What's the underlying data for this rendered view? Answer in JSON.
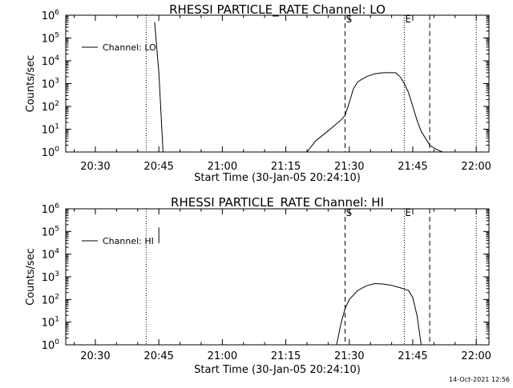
{
  "footer": {
    "timestamp": "14-Oct-2021 12:56"
  },
  "chart_data": [
    {
      "type": "line",
      "title": "RHESSI PARTICLE_RATE Channel: LO",
      "xlabel": "Start Time (30-Jan-05 20:24:10)",
      "ylabel": "Counts/sec",
      "yscale": "log",
      "ylim": [
        1,
        1000000
      ],
      "x_unit": "time of day (hh:mm)",
      "x_ticks": [
        "20:30",
        "20:45",
        "21:00",
        "21:15",
        "21:30",
        "21:45",
        "22:00"
      ],
      "y_ticks": [
        "10^0",
        "10^1",
        "10^2",
        "10^3",
        "10^4",
        "10^5",
        "10^6"
      ],
      "legend": {
        "position": "top-left",
        "entries": [
          "Channel: LO"
        ]
      },
      "markers": [
        {
          "label": "S",
          "time": "21:29",
          "style": "dashed"
        },
        {
          "label": "E",
          "time": "21:43",
          "style": "dotted"
        }
      ],
      "dotted_lines": [
        "20:42",
        "21:43",
        "22:00"
      ],
      "dashed_lines": [
        "21:29",
        "21:49"
      ],
      "series": [
        {
          "name": "Channel: LO",
          "points": [
            [
              "20:44",
              500000
            ],
            [
              "20:45",
              3000
            ],
            [
              "20:46",
              1
            ],
            [
              "21:20",
              1
            ],
            [
              "21:22",
              3
            ],
            [
              "21:24",
              6
            ],
            [
              "21:26",
              12
            ],
            [
              "21:28",
              25
            ],
            [
              "21:29",
              40
            ],
            [
              "21:30",
              150
            ],
            [
              "21:31",
              600
            ],
            [
              "21:32",
              1200
            ],
            [
              "21:34",
              2000
            ],
            [
              "21:36",
              2700
            ],
            [
              "21:38",
              3000
            ],
            [
              "21:40",
              3000
            ],
            [
              "21:41",
              3000
            ],
            [
              "21:42",
              2000
            ],
            [
              "21:43",
              1000
            ],
            [
              "21:44",
              400
            ],
            [
              "21:45",
              100
            ],
            [
              "21:46",
              25
            ],
            [
              "21:47",
              8
            ],
            [
              "21:48",
              4
            ],
            [
              "21:49",
              2
            ],
            [
              "21:50",
              1.5
            ],
            [
              "21:51",
              1.2
            ],
            [
              "21:52",
              1
            ]
          ]
        }
      ]
    },
    {
      "type": "line",
      "title": "RHESSI PARTICLE_RATE Channel: HI",
      "xlabel": "Start Time (30-Jan-05 20:24:10)",
      "ylabel": "Counts/sec",
      "yscale": "log",
      "ylim": [
        1,
        1000000
      ],
      "x_unit": "time of day (hh:mm)",
      "x_ticks": [
        "20:30",
        "20:45",
        "21:00",
        "21:15",
        "21:30",
        "21:45",
        "22:00"
      ],
      "y_ticks": [
        "10^0",
        "10^1",
        "10^2",
        "10^3",
        "10^4",
        "10^5",
        "10^6"
      ],
      "legend": {
        "position": "top-left",
        "entries": [
          "Channel: HI"
        ]
      },
      "markers": [
        {
          "label": "S",
          "time": "21:29",
          "style": "dashed"
        },
        {
          "label": "E",
          "time": "21:43",
          "style": "dotted"
        }
      ],
      "dotted_lines": [
        "20:42",
        "21:43",
        "22:00"
      ],
      "dashed_lines": [
        "21:29",
        "21:49"
      ],
      "series": [
        {
          "name": "Channel: HI",
          "points": [
            [
              "20:45",
              150000
            ],
            [
              "20:45",
              30000
            ],
            [
              "21:27",
              1
            ],
            [
              "21:28",
              8
            ],
            [
              "21:29",
              40
            ],
            [
              "21:30",
              100
            ],
            [
              "21:32",
              250
            ],
            [
              "21:34",
              400
            ],
            [
              "21:36",
              500
            ],
            [
              "21:38",
              480
            ],
            [
              "21:40",
              420
            ],
            [
              "21:42",
              330
            ],
            [
              "21:44",
              250
            ],
            [
              "21:45",
              120
            ],
            [
              "21:46",
              20
            ],
            [
              "21:47",
              1
            ]
          ]
        }
      ]
    }
  ]
}
